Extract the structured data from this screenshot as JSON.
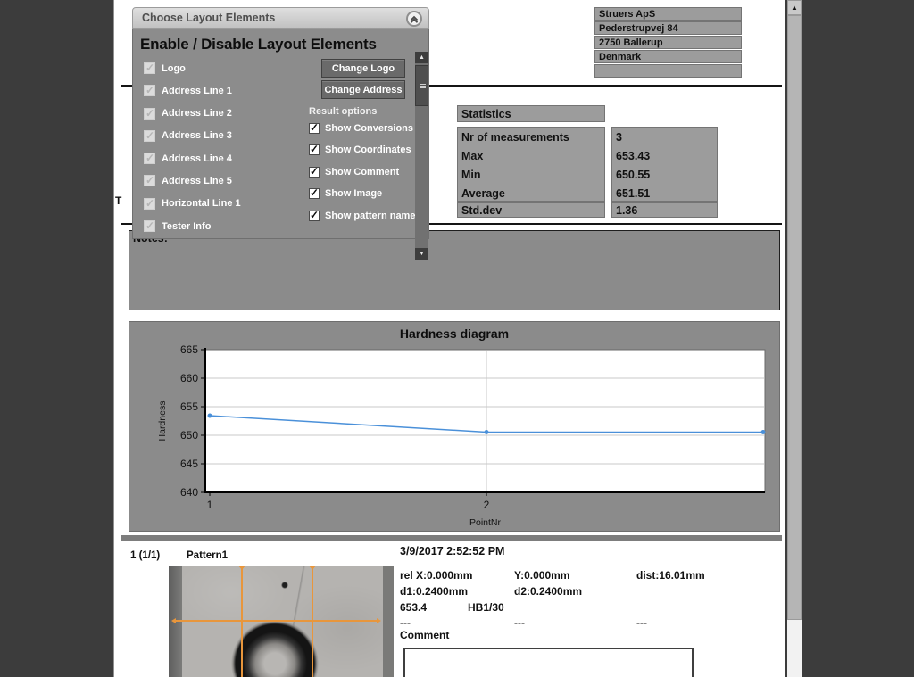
{
  "colors": {
    "accent_blue": "#4a90d9",
    "orange": "#e8963c",
    "panel_gray": "#8b8b8b",
    "bar_gray": "#9c9c9c"
  },
  "dialog": {
    "title": "Choose Layout Elements",
    "heading": "Enable / Disable Layout Elements",
    "layout_items": [
      {
        "label": "Logo",
        "checked": true
      },
      {
        "label": "Address Line 1",
        "checked": true
      },
      {
        "label": "Address Line 2",
        "checked": true
      },
      {
        "label": "Address Line 3",
        "checked": true
      },
      {
        "label": "Address Line 4",
        "checked": true
      },
      {
        "label": "Address Line 5",
        "checked": true
      },
      {
        "label": "Horizontal Line 1",
        "checked": true
      },
      {
        "label": "Tester Info",
        "checked": true
      }
    ],
    "change_logo_label": "Change Logo",
    "change_address_label": "Change Address",
    "result_options_label": "Result options",
    "result_items": [
      {
        "label": "Show Conversions",
        "checked": true
      },
      {
        "label": "Show Coordinates",
        "checked": true
      },
      {
        "label": "Show Comment",
        "checked": true
      },
      {
        "label": "Show Image",
        "checked": true
      },
      {
        "label": "Show pattern name",
        "checked": true
      }
    ]
  },
  "report": {
    "address_lines": [
      "Struers ApS",
      "Pederstrupvej 84",
      "2750 Ballerup",
      "Denmark",
      ""
    ],
    "statistics": {
      "header": "Statistics",
      "rows": [
        {
          "label": "Nr of measurements",
          "value": "3"
        },
        {
          "label": "Max",
          "value": "653.43"
        },
        {
          "label": "Min",
          "value": "650.55"
        },
        {
          "label": "Average",
          "value": "651.51"
        }
      ],
      "stddev_label": "Std.dev",
      "stddev_value": "1.36"
    },
    "notes_label": "Notes:",
    "page_fragment": "T",
    "measurement": {
      "index": "1 (1/1)",
      "pattern_name": "Pattern1",
      "timestamp": "3/9/2017 2:52:52 PM",
      "rel_x": "rel X:0.000mm",
      "y": "Y:0.000mm",
      "dist": "dist:16.01mm",
      "d1": "d1:0.2400mm",
      "d2": "d2:0.2400mm",
      "value": "653.4",
      "scale": "HB1/30",
      "dash1": "---",
      "dash2": "---",
      "dash3": "---",
      "comment_label": "Comment"
    }
  },
  "chart_data": {
    "type": "line",
    "title": "Hardness diagram",
    "xlabel": "PointNr",
    "ylabel": "Hardness",
    "x": [
      1,
      2,
      3
    ],
    "values": [
      653.43,
      650.55,
      650.55
    ],
    "ylim": [
      640,
      665
    ],
    "yticks": [
      640,
      645,
      650,
      655,
      660,
      665
    ],
    "xtick_labels": [
      1,
      2
    ],
    "grid": true,
    "legend": false,
    "line_color": "#4a90d9"
  }
}
